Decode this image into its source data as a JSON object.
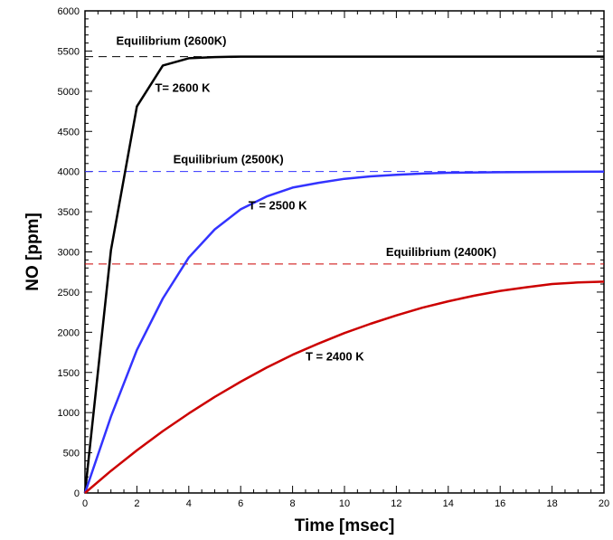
{
  "chart_data": {
    "type": "line",
    "title": "",
    "xlabel": "Time [msec]",
    "ylabel": "NO [ppm]",
    "xlim": [
      0,
      20
    ],
    "ylim": [
      0,
      6000
    ],
    "x_ticks": [
      0,
      2,
      4,
      6,
      8,
      10,
      12,
      14,
      16,
      18,
      20
    ],
    "x_tick_labels": [
      "0",
      "2",
      "4",
      "6",
      "8",
      "10",
      "12",
      "14",
      "16",
      "18",
      "20"
    ],
    "y_ticks": [
      0,
      500,
      1000,
      1500,
      2000,
      2500,
      3000,
      3500,
      4000,
      4500,
      5000,
      5500,
      6000
    ],
    "y_tick_labels": [
      "0",
      "500",
      "1000",
      "1500",
      "2000",
      "2500",
      "3000",
      "3500",
      "4000",
      "4500",
      "5000",
      "5500",
      "6000"
    ],
    "grid": false,
    "series": [
      {
        "color": "#000000",
        "x": [
          0,
          1,
          2,
          3,
          4,
          5,
          6,
          7,
          8,
          9,
          10,
          12,
          14,
          16,
          18,
          20
        ],
        "y": [
          0,
          3020,
          4810,
          5320,
          5410,
          5425,
          5430,
          5430,
          5430,
          5430,
          5430,
          5430,
          5430,
          5430,
          5430,
          5430
        ]
      },
      {
        "color": "#3333ff",
        "x": [
          0,
          1,
          2,
          3,
          4,
          5,
          6,
          7,
          8,
          9,
          10,
          11,
          12,
          13,
          14,
          16,
          18,
          20
        ],
        "y": [
          0,
          950,
          1780,
          2420,
          2930,
          3280,
          3530,
          3690,
          3800,
          3860,
          3910,
          3940,
          3960,
          3975,
          3985,
          3992,
          3996,
          4000
        ]
      },
      {
        "color": "#cc0000",
        "x": [
          0,
          1,
          2,
          3,
          4,
          5,
          6,
          7,
          8,
          9,
          10,
          11,
          12,
          13,
          14,
          15,
          16,
          17,
          18,
          19,
          20
        ],
        "y": [
          0,
          275,
          530,
          770,
          990,
          1195,
          1385,
          1560,
          1720,
          1860,
          1990,
          2105,
          2210,
          2305,
          2385,
          2455,
          2515,
          2560,
          2600,
          2620,
          2630
        ]
      }
    ],
    "reference_lines": [
      {
        "y": 5430,
        "color": "#000000",
        "dash": true
      },
      {
        "y": 4000,
        "color": "#3333ff",
        "dash": true
      },
      {
        "y": 2850,
        "color": "#cc0000",
        "dash": true
      }
    ],
    "annotations": [
      {
        "text": "Equilibrium (2600K)",
        "x": 1.2,
        "y": 5580
      },
      {
        "text": "T= 2600 K",
        "x": 2.7,
        "y": 4990
      },
      {
        "text": "Equilibrium (2500K)",
        "x": 3.4,
        "y": 4105
      },
      {
        "text": "T = 2500 K",
        "x": 6.3,
        "y": 3530
      },
      {
        "text": "Equilibrium (2400K)",
        "x": 11.6,
        "y": 2950
      },
      {
        "text": "T = 2400 K",
        "x": 8.5,
        "y": 1650
      }
    ]
  }
}
